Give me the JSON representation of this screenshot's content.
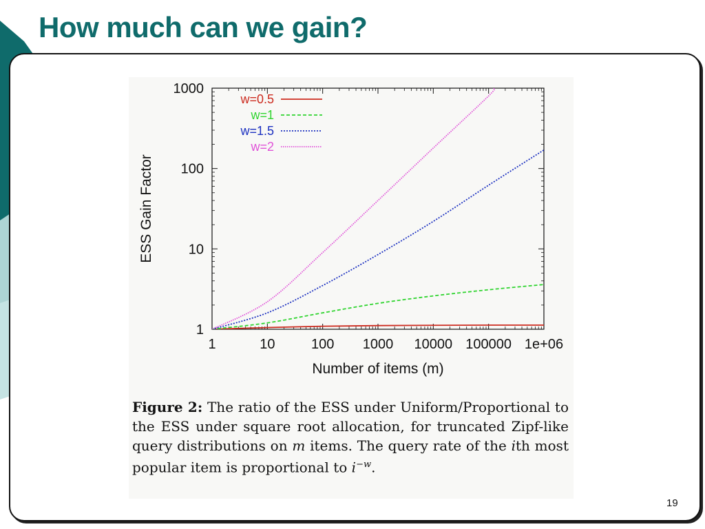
{
  "slide": {
    "title": "How much can we gain?",
    "page_number": "19",
    "accent_color": "#0f6b6b"
  },
  "caption": {
    "label": "Figure 2:",
    "text_1": " The ratio of the ESS under Uniform/Proportional to the ESS under square root allocation, for truncated Zipf-like query distributions on ",
    "var_m": "m",
    "text_2": " items. The query rate of the ",
    "var_i": "i",
    "text_3": "th most popular item is proportional to ",
    "var_base": "i",
    "var_exp": "−w",
    "text_4": "."
  },
  "chart_data": {
    "type": "line",
    "xlabel": "Number of items (m)",
    "ylabel": "ESS Gain Factor",
    "x_scale": "log",
    "y_scale": "log",
    "xlim": [
      1,
      1000000
    ],
    "ylim": [
      1,
      1000
    ],
    "x_ticks": [
      1,
      10,
      100,
      1000,
      10000,
      100000,
      1000000
    ],
    "x_tick_labels": [
      "1",
      "10",
      "100",
      "1000",
      "10000",
      "100000",
      "1e+06"
    ],
    "y_ticks": [
      1,
      10,
      100,
      1000
    ],
    "y_tick_labels": [
      "1",
      "10",
      "100",
      "1000"
    ],
    "legend_position": "top-left",
    "grid": false,
    "series": [
      {
        "name": "w=0.5",
        "color": "#cc2a1e",
        "dash": "solid",
        "points": [
          [
            1,
            1
          ],
          [
            10,
            1.05
          ],
          [
            100,
            1.09
          ],
          [
            1000,
            1.11
          ],
          [
            10000,
            1.12
          ],
          [
            100000,
            1.125
          ],
          [
            1000000,
            1.125
          ]
        ]
      },
      {
        "name": "w=1",
        "color": "#2fd42f",
        "dash": "dashed",
        "points": [
          [
            1,
            1
          ],
          [
            10,
            1.2
          ],
          [
            100,
            1.6
          ],
          [
            1000,
            2.1
          ],
          [
            10000,
            2.6
          ],
          [
            100000,
            3.1
          ],
          [
            1000000,
            3.6
          ]
        ]
      },
      {
        "name": "w=1.5",
        "color": "#1a2fc0",
        "dash": "dotted",
        "points": [
          [
            1,
            1
          ],
          [
            10,
            1.6
          ],
          [
            100,
            3.5
          ],
          [
            1000,
            8.5
          ],
          [
            10000,
            22
          ],
          [
            100000,
            62
          ],
          [
            1000000,
            170
          ]
        ]
      },
      {
        "name": "w=2",
        "color": "#e052d8",
        "dash": "dotted-fine",
        "points": [
          [
            1,
            1
          ],
          [
            10,
            2.2
          ],
          [
            100,
            9
          ],
          [
            1000,
            40
          ],
          [
            10000,
            180
          ],
          [
            100000,
            800
          ],
          [
            125000,
            1000
          ]
        ]
      }
    ]
  }
}
